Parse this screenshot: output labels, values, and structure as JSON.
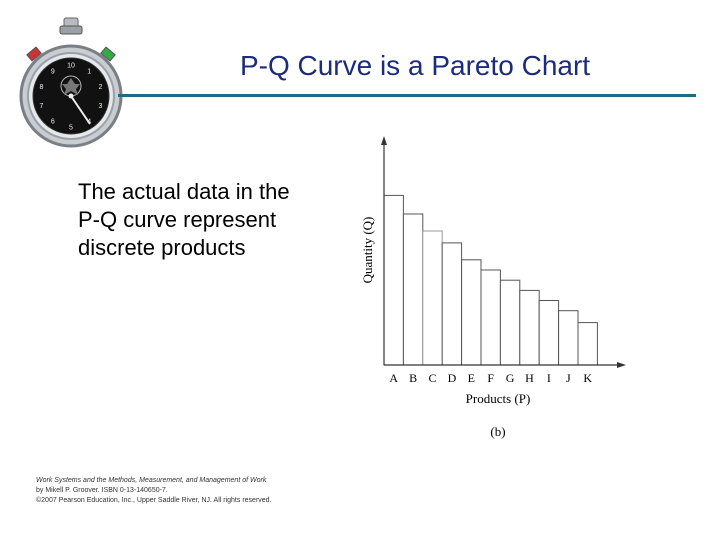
{
  "slide": {
    "title": "P-Q Curve is a Pareto Chart",
    "body_lines": [
      "The actual data in the",
      "P-Q curve represent",
      "discrete products"
    ]
  },
  "credit": {
    "line1": "Work Systems and the Methods, Measurement, and Management of Work",
    "line2": "by Mikell P. Groover. ISBN 0-13-140650-7.",
    "line3": "©2007 Pearson Education, Inc., Upper Saddle River, NJ. All rights reserved."
  },
  "stopwatch": {
    "dial_numbers": [
      "1",
      "2",
      "3",
      "4",
      "5",
      "6",
      "7",
      "8",
      "9",
      "10"
    ]
  },
  "colors": {
    "title": "#1c2c7a",
    "rule": "#1f6a86",
    "bar_fill": "#ffffff",
    "bar_stroke": "#555555"
  },
  "chart_data": {
    "type": "bar",
    "title": "",
    "xlabel": "Products (P)",
    "ylabel": "Quantity (Q)",
    "panel_label": "(b)",
    "categories": [
      "A",
      "B",
      "C",
      "D",
      "E",
      "F",
      "G",
      "H",
      "I",
      "J",
      "K"
    ],
    "values": [
      100,
      89,
      79,
      72,
      62,
      56,
      50,
      44,
      38,
      32,
      25
    ],
    "ylim": [
      0,
      135
    ],
    "grid": false,
    "legend": "none"
  }
}
